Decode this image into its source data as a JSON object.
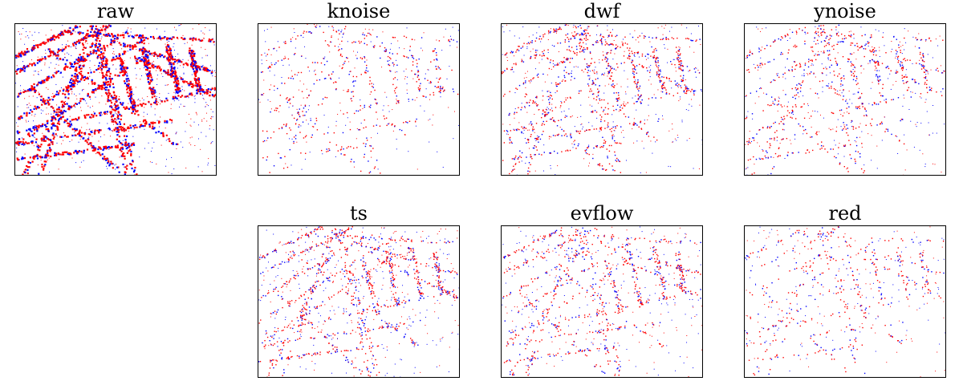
{
  "figure": {
    "panels": [
      {
        "id": "raw",
        "title": "raw",
        "density": 1.0
      },
      {
        "id": "knoise",
        "title": "knoise",
        "density": 0.22
      },
      {
        "id": "dwf",
        "title": "dwf",
        "density": 0.45
      },
      {
        "id": "ynoise",
        "title": "ynoise",
        "density": 0.32
      },
      {
        "id": "ts",
        "title": "ts",
        "density": 0.5
      },
      {
        "id": "evflow",
        "title": "evflow",
        "density": 0.38
      },
      {
        "id": "red",
        "title": "red",
        "density": 0.2
      }
    ],
    "colors": {
      "positive": "#ff0000",
      "negative": "#0000ff",
      "background": "#ffffff",
      "frame": "#000000"
    }
  }
}
